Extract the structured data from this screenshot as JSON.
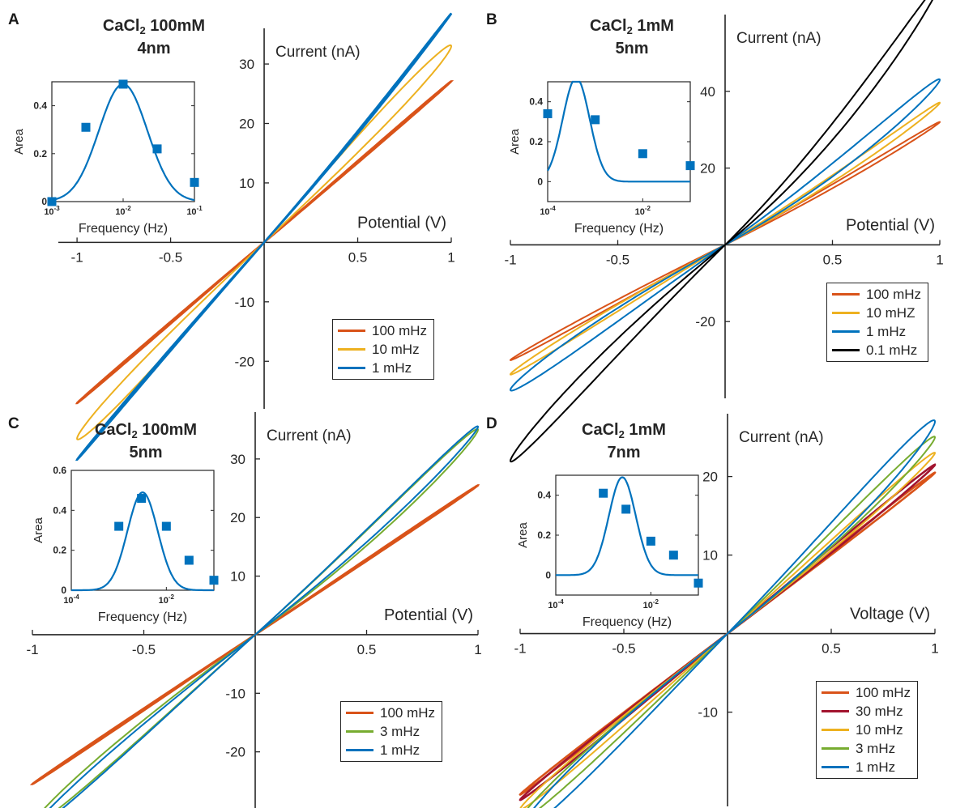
{
  "colors": {
    "axis": "#262626",
    "orange": "#D95319",
    "yellow": "#EDB120",
    "blue": "#0072BD",
    "black": "#000000",
    "green": "#77AC30",
    "darkred": "#A2142F",
    "marker": "#0072BD"
  },
  "chart_data": [
    {
      "panel": "A",
      "type": "line",
      "title_main": "CaCl",
      "title_sub": "2",
      "title_conc": " 100mM",
      "title_line2": "4nm",
      "xlabel": "Potential (V)",
      "ylabel": "Current (nA)",
      "xlim": [
        -1.1,
        1.0
      ],
      "ylim": [
        -28,
        36
      ],
      "xticks": [
        -1,
        -0.5,
        0.5,
        1
      ],
      "xtick_labels": [
        "-1",
        "-0.5",
        "0.5",
        "1"
      ],
      "yticks": [
        -20,
        -10,
        10,
        20,
        30
      ],
      "ytick_labels": [
        "-20",
        "-10",
        "10",
        "20",
        "30"
      ],
      "series": [
        {
          "name": "100 mHz",
          "color": "orange",
          "amp": 27,
          "bend": 0.1,
          "loop": 0.4
        },
        {
          "name": "10 mHz",
          "color": "yellow",
          "amp": 33,
          "bend": 0.0,
          "loop": 3.2
        },
        {
          "name": "1 mHz",
          "color": "blue",
          "amp": 35.5,
          "bend": 3.0,
          "loop": 0.5
        }
      ],
      "inset": {
        "ylabel": "Area",
        "xlabel": "Frequency (Hz)",
        "xlog": [
          -3,
          -1
        ],
        "ylim": [
          0,
          0.5
        ],
        "xtick_labels": [
          {
            "b": "10",
            "e": "-3"
          },
          {
            "b": "10",
            "e": "-2"
          },
          {
            "b": "10",
            "e": "-1"
          }
        ],
        "ytick_labels": [
          "0",
          "0.2",
          "0.4"
        ],
        "yticks": [
          0,
          0.2,
          0.4
        ],
        "points": [
          [
            0.001,
            0.0
          ],
          [
            0.003,
            0.31
          ],
          [
            0.01,
            0.49
          ],
          [
            0.03,
            0.22
          ],
          [
            0.1,
            0.08
          ]
        ],
        "peak": {
          "log10f": -2.0,
          "height": 0.49,
          "width": 0.48,
          "base": 0.0
        }
      }
    },
    {
      "panel": "B",
      "type": "line",
      "title_main": "CaCl",
      "title_sub": "2",
      "title_conc": " 1mM",
      "title_line2": "5nm",
      "xlabel": "Potential (V)",
      "ylabel": "Current (nA)",
      "xlim": [
        -1.0,
        1.0
      ],
      "ylim": [
        -40,
        60
      ],
      "xticks": [
        -1,
        -0.5,
        0.5,
        1
      ],
      "xtick_labels": [
        "-1",
        "-0.5",
        "0.5",
        "1"
      ],
      "yticks": [
        -20,
        20,
        40
      ],
      "ytick_labels": [
        "-20",
        "20",
        "40"
      ],
      "series": [
        {
          "name": "100 mHz",
          "color": "orange",
          "amp": 29,
          "bend": 3.0,
          "loop": 1.2
        },
        {
          "name": "10 mHZ",
          "color": "yellow",
          "amp": 32,
          "bend": 5.0,
          "loop": 2.0
        },
        {
          "name": "1 mHz",
          "color": "blue",
          "amp": 35,
          "bend": 8.0,
          "loop": 4.0
        },
        {
          "name": "0.1 mHz",
          "color": "black",
          "amp": 50,
          "bend": 18.0,
          "loop": 5.0
        }
      ],
      "inset": {
        "ylabel": "Area",
        "xlabel": "Frequency (Hz)",
        "xlog": [
          -4,
          -1
        ],
        "ylim": [
          -0.1,
          0.5
        ],
        "xtick_labels": [
          {
            "b": "10",
            "e": "-4"
          },
          {
            "b": "10",
            "e": "-2"
          }
        ],
        "ytick_labels": [
          "0",
          "0.2",
          "0.4"
        ],
        "yticks": [
          0,
          0.2,
          0.4
        ],
        "points": [
          [
            0.0001,
            0.34
          ],
          [
            0.001,
            0.31
          ],
          [
            0.01,
            0.14
          ],
          [
            0.1,
            0.08
          ]
        ],
        "peak": {
          "log10f": -3.4,
          "height": 0.52,
          "width": 0.4,
          "base": 0.0
        }
      }
    },
    {
      "panel": "C",
      "type": "line",
      "title_main": "CaCl",
      "title_sub": "2",
      "title_conc": " 100mM",
      "title_line2": "5nm",
      "xlabel": "Potential (V)",
      "ylabel": "Current (nA)",
      "xlim": [
        -1.0,
        1.0
      ],
      "ylim": [
        -30,
        38
      ],
      "xticks": [
        -1,
        -0.5,
        0.5,
        1
      ],
      "xtick_labels": [
        "-1",
        "-0.5",
        "0.5",
        "1"
      ],
      "yticks": [
        -20,
        -10,
        10,
        20,
        30
      ],
      "ytick_labels": [
        "-20",
        "-10",
        "10",
        "20",
        "30"
      ],
      "series": [
        {
          "name": "100 mHz",
          "color": "orange",
          "amp": 25.5,
          "bend": 0.0,
          "loop": 0.4
        },
        {
          "name": "3 mHz",
          "color": "green",
          "amp": 31,
          "bend": 4.0,
          "loop": 3.0
        },
        {
          "name": "1 mHz",
          "color": "blue",
          "amp": 32,
          "bend": 3.5,
          "loop": 2.5
        }
      ],
      "inset": {
        "ylabel": "Area",
        "xlabel": "Frequency (Hz)",
        "xlog": [
          -4,
          -1
        ],
        "ylim": [
          0,
          0.6
        ],
        "xtick_labels": [
          {
            "b": "10",
            "e": "-4"
          },
          {
            "b": "10",
            "e": "-2"
          }
        ],
        "ytick_labels": [
          "0",
          "0.2",
          "0.4",
          "0.6"
        ],
        "yticks": [
          0,
          0.2,
          0.4,
          0.6
        ],
        "points": [
          [
            0.001,
            0.32
          ],
          [
            0.003,
            0.46
          ],
          [
            0.01,
            0.32
          ],
          [
            0.03,
            0.15
          ],
          [
            0.1,
            0.05
          ]
        ],
        "peak": {
          "log10f": -2.5,
          "height": 0.49,
          "width": 0.45,
          "base": 0.0
        }
      }
    },
    {
      "panel": "D",
      "type": "line",
      "title_main": "CaCl",
      "title_sub": "2",
      "title_conc": " 1mM",
      "title_line2": "7nm",
      "xlabel": "Voltage (V)",
      "ylabel": "Current (nA)",
      "xlim": [
        -1.0,
        1.0
      ],
      "ylim": [
        -22,
        28
      ],
      "xticks": [
        -1,
        -0.5,
        0.5,
        1
      ],
      "xtick_labels": [
        "-1",
        "-0.5",
        "0.5",
        "1"
      ],
      "yticks": [
        -10,
        10,
        20
      ],
      "ytick_labels": [
        "-10",
        "10",
        "20"
      ],
      "series": [
        {
          "name": "100 mHz",
          "color": "orange",
          "amp": 20.5,
          "bend": 0.0,
          "loop": 0.5
        },
        {
          "name": "30 mHz",
          "color": "darkred",
          "amp": 21,
          "bend": 0.5,
          "loop": 0.8
        },
        {
          "name": "10 mHz",
          "color": "yellow",
          "amp": 22,
          "bend": 1.0,
          "loop": 1.5
        },
        {
          "name": "3 mHz",
          "color": "green",
          "amp": 23,
          "bend": 2.0,
          "loop": 2.2
        },
        {
          "name": "1 mHz",
          "color": "blue",
          "amp": 24,
          "bend": 3.0,
          "loop": 3.2
        }
      ],
      "inset": {
        "ylabel": "Area",
        "xlabel": "Frequency (Hz)",
        "xlog": [
          -4,
          -1
        ],
        "ylim": [
          -0.1,
          0.5
        ],
        "xtick_labels": [
          {
            "b": "10",
            "e": "-4"
          },
          {
            "b": "10",
            "e": "-2"
          }
        ],
        "ytick_labels": [
          "0",
          "0.2",
          "0.4"
        ],
        "yticks": [
          0,
          0.2,
          0.4
        ],
        "points": [
          [
            0.001,
            0.41
          ],
          [
            0.003,
            0.33
          ],
          [
            0.01,
            0.17
          ],
          [
            0.03,
            0.1
          ],
          [
            0.1,
            -0.04
          ]
        ],
        "peak": {
          "log10f": -2.6,
          "height": 0.49,
          "width": 0.4,
          "base": 0.0
        }
      }
    }
  ]
}
